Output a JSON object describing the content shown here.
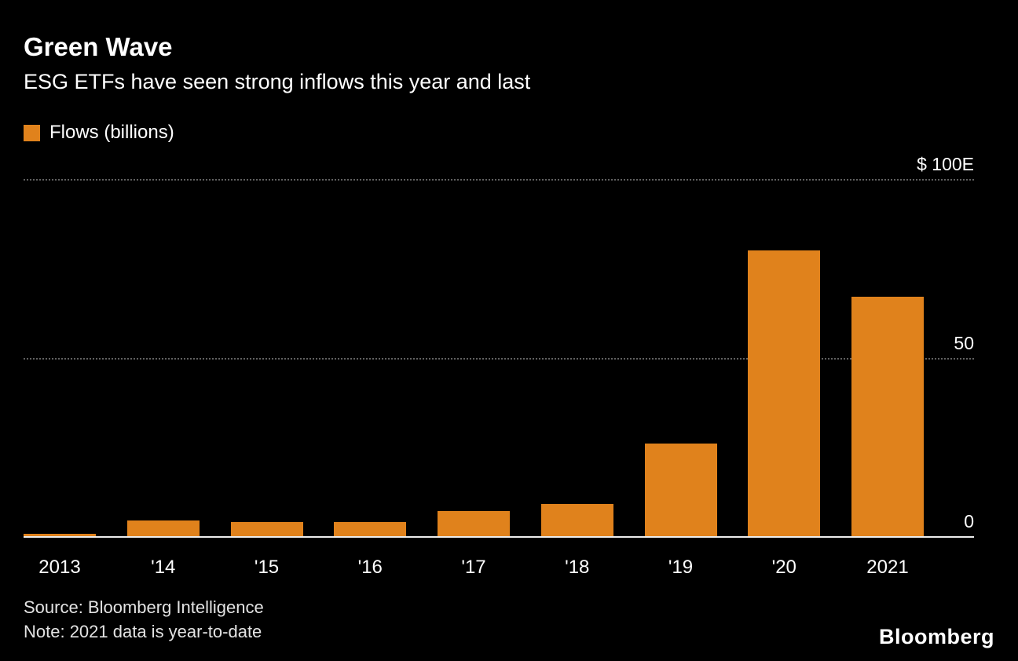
{
  "header": {
    "title": "Green Wave",
    "subtitle": "ESG ETFs have seen strong inflows this year and last"
  },
  "legend": {
    "label": "Flows (billions)",
    "color": "#E0821C"
  },
  "chart_data": {
    "type": "bar",
    "title": "Green Wave",
    "subtitle": "ESG ETFs have seen strong inflows this year and last",
    "categories": [
      "2013",
      "'14",
      "'15",
      "'16",
      "'17",
      "'18",
      "'19",
      "'20",
      "2021"
    ],
    "values": [
      0.7,
      4.5,
      4,
      4,
      7,
      9,
      26,
      80,
      67
    ],
    "series_name": "Flows (billions)",
    "xlabel": "",
    "ylabel": "Flows (billions)",
    "ylim": [
      0,
      100
    ],
    "yticks": [
      {
        "value": 100,
        "label": "$ 100E"
      },
      {
        "value": 50,
        "label": "50"
      },
      {
        "value": 0,
        "label": "0"
      }
    ],
    "bar_color": "#E0821C",
    "grid": "horizontal-dotted",
    "legend_position": "top-left",
    "background": "#000000"
  },
  "footer": {
    "source": "Source: Bloomberg Intelligence",
    "note": "Note: 2021 data is year-to-date",
    "brand": "Bloomberg"
  }
}
